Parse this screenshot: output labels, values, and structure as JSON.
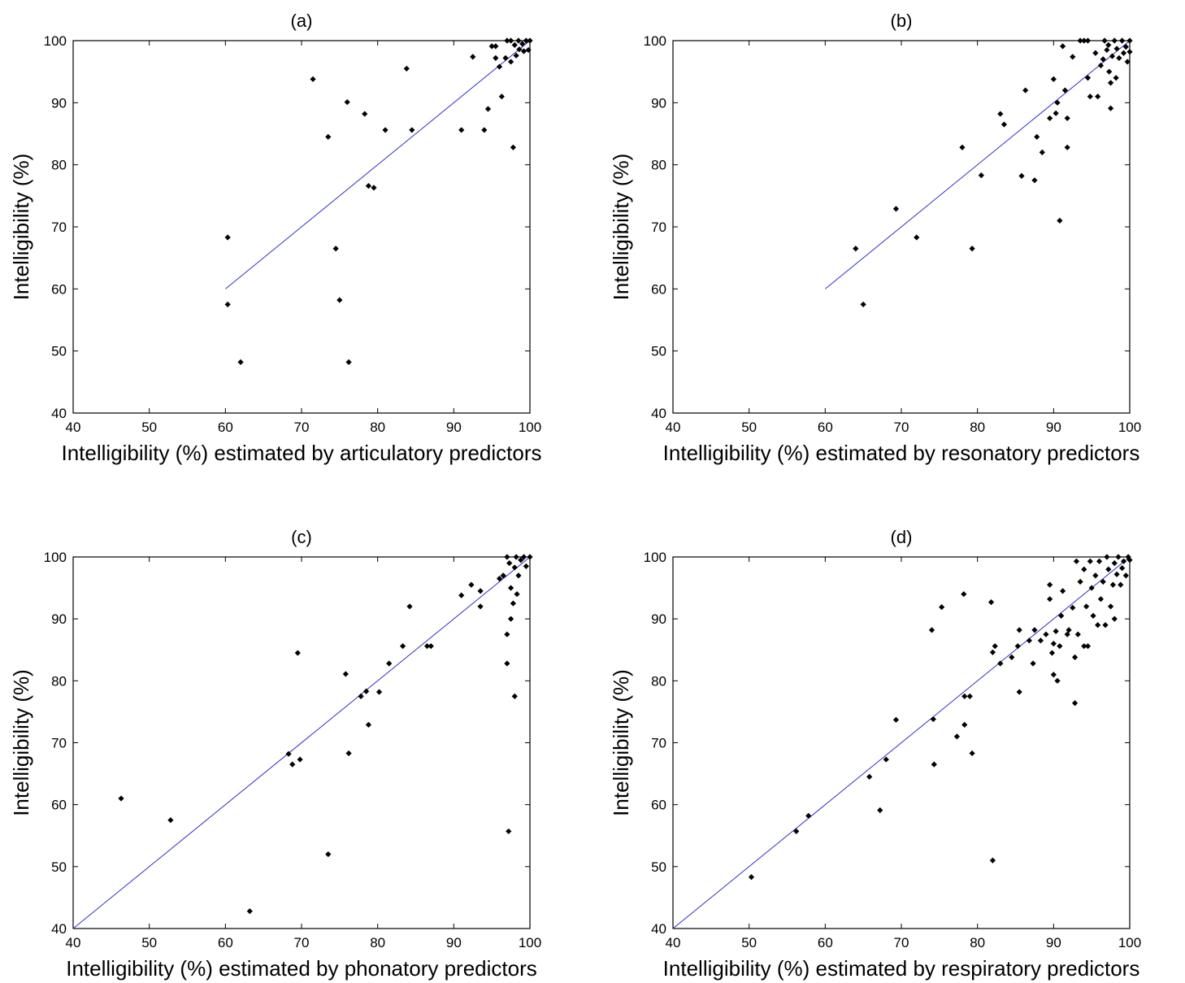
{
  "chart_data": [
    {
      "type": "scatter",
      "title": "(a)",
      "xlabel": "Intelligibility (%) estimated by articulatory predictors",
      "ylabel": "Intelligibility (%)",
      "xlim": [
        40,
        100
      ],
      "ylim": [
        40,
        100
      ],
      "xticks": [
        40,
        50,
        60,
        70,
        80,
        90,
        100
      ],
      "yticks": [
        40,
        50,
        60,
        70,
        80,
        90,
        100
      ],
      "grid": false,
      "fit_line": {
        "x": [
          60,
          100
        ],
        "y": [
          60,
          100
        ],
        "color": "#2d2dc8"
      },
      "points": [
        [
          60.3,
          68.3
        ],
        [
          60.3,
          57.5
        ],
        [
          62,
          48.2
        ],
        [
          71.5,
          93.8
        ],
        [
          73.5,
          84.5
        ],
        [
          74.5,
          66.5
        ],
        [
          75,
          58.2
        ],
        [
          76,
          90.1
        ],
        [
          76.2,
          48.2
        ],
        [
          78.3,
          88.2
        ],
        [
          78.8,
          76.6
        ],
        [
          79.5,
          76.3
        ],
        [
          81,
          85.6
        ],
        [
          83.8,
          95.5
        ],
        [
          84.5,
          85.6
        ],
        [
          91,
          85.6
        ],
        [
          92.5,
          97.4
        ],
        [
          94,
          85.6
        ],
        [
          94.5,
          89
        ],
        [
          95,
          99.1
        ],
        [
          95.5,
          99.1
        ],
        [
          95.5,
          97.2
        ],
        [
          96,
          95.8
        ],
        [
          96.3,
          91
        ],
        [
          96.8,
          97.2
        ],
        [
          97,
          100
        ],
        [
          97.5,
          100
        ],
        [
          97.5,
          96.6
        ],
        [
          97.8,
          82.8
        ],
        [
          98,
          99.3
        ],
        [
          98.2,
          97.6
        ],
        [
          98.5,
          100
        ],
        [
          98.6,
          98.6
        ],
        [
          99,
          99.5
        ],
        [
          99.2,
          98.3
        ],
        [
          99.5,
          100
        ],
        [
          99.8,
          98.5
        ],
        [
          100,
          100
        ]
      ]
    },
    {
      "type": "scatter",
      "title": "(b)",
      "xlabel": "Intelligibility (%) estimated by resonatory predictors",
      "ylabel": "Intelligibility (%)",
      "xlim": [
        40,
        100
      ],
      "ylim": [
        40,
        100
      ],
      "xticks": [
        40,
        50,
        60,
        70,
        80,
        90,
        100
      ],
      "yticks": [
        40,
        50,
        60,
        70,
        80,
        90,
        100
      ],
      "grid": false,
      "fit_line": {
        "x": [
          60,
          100
        ],
        "y": [
          60,
          100
        ],
        "color": "#2d2dc8"
      },
      "points": [
        [
          64,
          66.5
        ],
        [
          65,
          57.5
        ],
        [
          69.3,
          72.9
        ],
        [
          72,
          68.3
        ],
        [
          78,
          82.8
        ],
        [
          79.3,
          66.5
        ],
        [
          80.5,
          78.3
        ],
        [
          83,
          88.2
        ],
        [
          83.5,
          86.5
        ],
        [
          85.8,
          78.2
        ],
        [
          86.3,
          92
        ],
        [
          87.5,
          77.5
        ],
        [
          87.8,
          84.5
        ],
        [
          88.5,
          82
        ],
        [
          89.5,
          87.5
        ],
        [
          90,
          93.8
        ],
        [
          90.3,
          88.3
        ],
        [
          90.5,
          90
        ],
        [
          90.8,
          71
        ],
        [
          91.2,
          99.1
        ],
        [
          91.5,
          92
        ],
        [
          91.8,
          82.8
        ],
        [
          91.8,
          87.5
        ],
        [
          92.5,
          97.4
        ],
        [
          93.5,
          100
        ],
        [
          94,
          100
        ],
        [
          94.5,
          100
        ],
        [
          94.5,
          94
        ],
        [
          94.8,
          91
        ],
        [
          95.5,
          98
        ],
        [
          95.8,
          91
        ],
        [
          96.2,
          96
        ],
        [
          96.5,
          97
        ],
        [
          96.7,
          100
        ],
        [
          97,
          98.5
        ],
        [
          97.2,
          99.3
        ],
        [
          97.3,
          95
        ],
        [
          97.5,
          93.2
        ],
        [
          97.5,
          89.1
        ],
        [
          97.7,
          97.5
        ],
        [
          98,
          100
        ],
        [
          98.2,
          94
        ],
        [
          98.3,
          98.7
        ],
        [
          98.6,
          97.2
        ],
        [
          99,
          100
        ],
        [
          99.2,
          98
        ],
        [
          99.5,
          99
        ],
        [
          99.7,
          96.6
        ],
        [
          100,
          100
        ],
        [
          100,
          98.2
        ]
      ]
    },
    {
      "type": "scatter",
      "title": "(c)",
      "xlabel": "Intelligibility (%) estimated by phonatory predictors",
      "ylabel": "Intelligibility (%)",
      "xlim": [
        40,
        100
      ],
      "ylim": [
        40,
        100
      ],
      "xticks": [
        40,
        50,
        60,
        70,
        80,
        90,
        100
      ],
      "yticks": [
        40,
        50,
        60,
        70,
        80,
        90,
        100
      ],
      "grid": false,
      "fit_line": {
        "x": [
          40,
          100
        ],
        "y": [
          40,
          100
        ],
        "color": "#2d2dc8"
      },
      "points": [
        [
          46.3,
          61
        ],
        [
          52.8,
          57.5
        ],
        [
          63.2,
          42.8
        ],
        [
          68.3,
          68.2
        ],
        [
          68.8,
          66.5
        ],
        [
          69.5,
          84.5
        ],
        [
          69.8,
          67.3
        ],
        [
          73.5,
          52
        ],
        [
          75.8,
          81.1
        ],
        [
          76.2,
          68.3
        ],
        [
          77.8,
          77.5
        ],
        [
          78.5,
          78.3
        ],
        [
          78.8,
          72.9
        ],
        [
          80.2,
          78.2
        ],
        [
          81.5,
          82.8
        ],
        [
          83.3,
          85.6
        ],
        [
          84.2,
          92
        ],
        [
          86.5,
          85.6
        ],
        [
          87,
          85.6
        ],
        [
          91,
          93.8
        ],
        [
          92.3,
          95.5
        ],
        [
          93.5,
          94.5
        ],
        [
          93.5,
          92
        ],
        [
          96,
          96.5
        ],
        [
          96.5,
          97
        ],
        [
          97,
          100
        ],
        [
          97,
          87.5
        ],
        [
          97,
          82.8
        ],
        [
          97.2,
          55.7
        ],
        [
          97.3,
          99
        ],
        [
          97.5,
          95
        ],
        [
          97.5,
          90
        ],
        [
          97.8,
          92.5
        ],
        [
          98,
          77.5
        ],
        [
          98,
          98.3
        ],
        [
          98.2,
          100
        ],
        [
          98.3,
          94
        ],
        [
          98.5,
          97
        ],
        [
          98.8,
          99.5
        ],
        [
          99.2,
          100
        ],
        [
          99.5,
          98.5
        ],
        [
          100,
          100
        ]
      ]
    },
    {
      "type": "scatter",
      "title": "(d)",
      "xlabel": "Intelligibility (%) estimated by respiratory predictors",
      "ylabel": "Intelligibility (%)",
      "xlim": [
        40,
        100
      ],
      "ylim": [
        40,
        100
      ],
      "xticks": [
        40,
        50,
        60,
        70,
        80,
        90,
        100
      ],
      "yticks": [
        40,
        50,
        60,
        70,
        80,
        90,
        100
      ],
      "grid": false,
      "fit_line": {
        "x": [
          40,
          100
        ],
        "y": [
          40,
          100
        ],
        "color": "#2d2dc8"
      },
      "points": [
        [
          50.3,
          48.3
        ],
        [
          56.2,
          55.7
        ],
        [
          57.8,
          58.2
        ],
        [
          65.8,
          64.5
        ],
        [
          67.2,
          59.1
        ],
        [
          68,
          67.3
        ],
        [
          69.3,
          73.7
        ],
        [
          74,
          88.2
        ],
        [
          74.2,
          73.8
        ],
        [
          74.3,
          66.5
        ],
        [
          75.3,
          91.9
        ],
        [
          77.3,
          71
        ],
        [
          78.2,
          94
        ],
        [
          78.3,
          72.9
        ],
        [
          78.3,
          77.5
        ],
        [
          79,
          77.5
        ],
        [
          79.3,
          68.3
        ],
        [
          81.8,
          92.7
        ],
        [
          82,
          51
        ],
        [
          82,
          84.6
        ],
        [
          82.3,
          85.6
        ],
        [
          83,
          82.8
        ],
        [
          84.5,
          83.8
        ],
        [
          85.3,
          85.6
        ],
        [
          85.5,
          78.2
        ],
        [
          85.5,
          88.2
        ],
        [
          86.8,
          86.5
        ],
        [
          87.3,
          82.8
        ],
        [
          87.5,
          88.2
        ],
        [
          88.3,
          86.5
        ],
        [
          89,
          87.5
        ],
        [
          89.5,
          95.5
        ],
        [
          89.5,
          93.2
        ],
        [
          89.8,
          84.5
        ],
        [
          90,
          81
        ],
        [
          90,
          86
        ],
        [
          90.3,
          88
        ],
        [
          90.5,
          80
        ],
        [
          90.8,
          85.6
        ],
        [
          91,
          90.5
        ],
        [
          91.2,
          94.5
        ],
        [
          91.8,
          87.5
        ],
        [
          92,
          88.2
        ],
        [
          92.5,
          91.8
        ],
        [
          92.8,
          83.8
        ],
        [
          92.8,
          76.4
        ],
        [
          93,
          99.3
        ],
        [
          93.2,
          87.5
        ],
        [
          93.5,
          96
        ],
        [
          94,
          85.6
        ],
        [
          94,
          98
        ],
        [
          94.3,
          92
        ],
        [
          94.5,
          85.6
        ],
        [
          94.8,
          99.3
        ],
        [
          95,
          95
        ],
        [
          95.2,
          90.5
        ],
        [
          95.5,
          97
        ],
        [
          95.8,
          89
        ],
        [
          96,
          99.3
        ],
        [
          96.2,
          93.2
        ],
        [
          96.5,
          96
        ],
        [
          96.8,
          89
        ],
        [
          97,
          100
        ],
        [
          97.2,
          98
        ],
        [
          97.5,
          92
        ],
        [
          97.8,
          95.5
        ],
        [
          98,
          99
        ],
        [
          98,
          90
        ],
        [
          98.3,
          97.2
        ],
        [
          98.5,
          100
        ],
        [
          98.8,
          95.5
        ],
        [
          99,
          98.2
        ],
        [
          99.2,
          99.3
        ],
        [
          99.5,
          97
        ],
        [
          99.8,
          100
        ],
        [
          100,
          99.5
        ]
      ]
    }
  ]
}
